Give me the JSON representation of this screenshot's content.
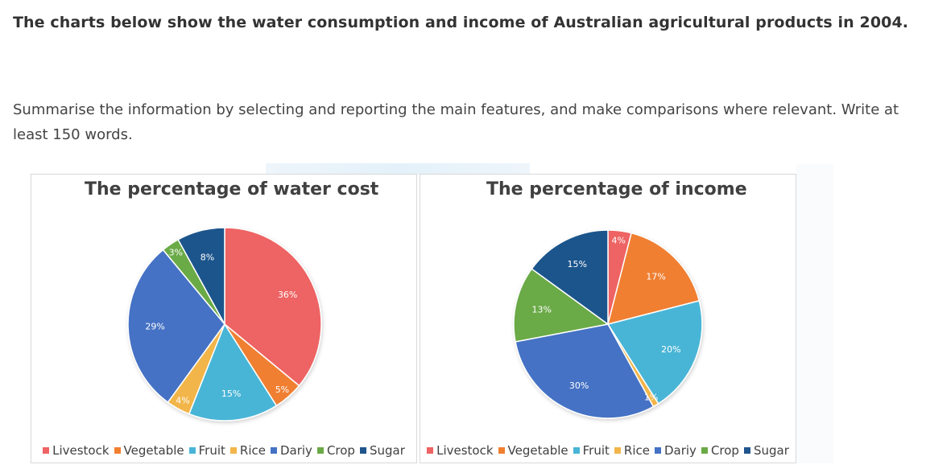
{
  "task": {
    "title": "The charts below show the water consumption and income of Australian agricultural products in 2004.",
    "instructions": "Summarise the information by selecting and reporting the main features, and make comparisons where relevant. Write at least 150 words."
  },
  "chart_data": [
    {
      "type": "pie",
      "title": "The percentage of water cost",
      "categories": [
        "Livestock",
        "Vegetable",
        "Fruit",
        "Rice",
        "Dariy",
        "Crop",
        "Sugar"
      ],
      "values": [
        36,
        5,
        15,
        4,
        29,
        3,
        8
      ],
      "labels": [
        "36%",
        "5%",
        "15%",
        "4%",
        "29%",
        "3%",
        "8%"
      ],
      "colors": [
        "#ee6363",
        "#f07f30",
        "#49b5d6",
        "#f2b54a",
        "#4472c4",
        "#6aaa46",
        "#1f558c"
      ],
      "legend_position": "bottom"
    },
    {
      "type": "pie",
      "title": "The percentage of income",
      "categories": [
        "Livestock",
        "Vegetable",
        "Fruit",
        "Rice",
        "Dariy",
        "Crop",
        "Sugar"
      ],
      "values": [
        4,
        17,
        20,
        1,
        30,
        13,
        15
      ],
      "labels": [
        "4%",
        "17%",
        "20%",
        "1%",
        "30%",
        "13%",
        "15%"
      ],
      "colors": [
        "#ee6363",
        "#f07f30",
        "#49b5d6",
        "#f2b54a",
        "#4472c4",
        "#6aaa46",
        "#1f558c"
      ],
      "legend_position": "bottom"
    }
  ]
}
